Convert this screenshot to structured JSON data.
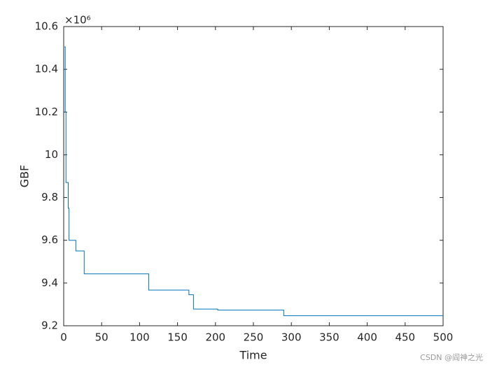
{
  "chart_data": {
    "type": "line",
    "xlabel": "Time",
    "ylabel": "GBF",
    "y_exponent": "×10⁶",
    "watermark": "CSDN @阎神之光",
    "x": [
      1,
      2,
      2,
      3,
      3,
      6,
      6,
      7,
      7,
      16,
      16,
      27,
      27,
      112,
      112,
      165,
      165,
      171,
      171,
      203,
      203,
      290,
      290,
      500
    ],
    "series": [
      {
        "color": "#0072bd",
        "values": [
          10.505,
          10.505,
          10.2,
          10.2,
          9.87,
          9.87,
          9.75,
          9.75,
          9.6,
          9.6,
          9.55,
          9.55,
          9.443,
          9.443,
          9.367,
          9.367,
          9.345,
          9.345,
          9.278,
          9.278,
          9.273,
          9.273,
          9.247,
          9.247
        ]
      }
    ],
    "xlim": [
      0,
      500
    ],
    "xticks": [
      0,
      50,
      100,
      150,
      200,
      250,
      300,
      350,
      400,
      450,
      500
    ],
    "ylim": [
      9.2,
      10.6
    ],
    "yticks": [
      9.2,
      9.4,
      9.6,
      9.8,
      10,
      10.2,
      10.4,
      10.6
    ]
  }
}
